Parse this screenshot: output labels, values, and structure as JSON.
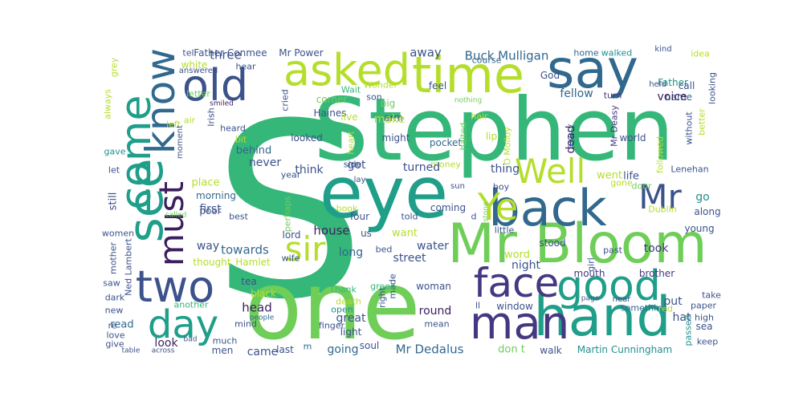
{
  "colors": {
    "dark_purple": "#3b1e5e",
    "purple": "#453781",
    "blue": "#3b528b",
    "steel": "#31688e",
    "teal": "#21908d",
    "sea": "#1f9e89",
    "green": "#35b779",
    "light_green": "#6ece58",
    "lime": "#b5de2b",
    "yellow": "#e3e418"
  },
  "words": [
    {
      "id": "S",
      "text": "S"
    },
    {
      "id": "Stephen",
      "text": "Stephen"
    },
    {
      "id": "one",
      "text": "one"
    },
    {
      "id": "eye",
      "text": "eye"
    },
    {
      "id": "MrBloom",
      "text": "Mr Bloom"
    },
    {
      "id": "hand",
      "text": "hand"
    },
    {
      "id": "time",
      "text": "time"
    },
    {
      "id": "say",
      "text": "say"
    },
    {
      "id": "back",
      "text": "back"
    },
    {
      "id": "man",
      "text": "man"
    },
    {
      "id": "face",
      "text": "face"
    },
    {
      "id": "good",
      "text": "good"
    },
    {
      "id": "two",
      "text": "two"
    },
    {
      "id": "see",
      "text": "see"
    },
    {
      "id": "know",
      "text": "know"
    },
    {
      "id": "come",
      "text": "come"
    },
    {
      "id": "old",
      "text": "old"
    },
    {
      "id": "asked",
      "text": "asked"
    },
    {
      "id": "day",
      "text": "day"
    },
    {
      "id": "must",
      "text": "must"
    },
    {
      "id": "Well",
      "text": "Well"
    },
    {
      "id": "Ye",
      "text": "Ye"
    },
    {
      "id": "Mr",
      "text": "Mr"
    },
    {
      "id": "sir",
      "text": "sir"
    },
    {
      "id": "BuckMulligan",
      "text": "Buck Mulligan"
    },
    {
      "id": "MrDedalus",
      "text": "Mr Dedalus"
    },
    {
      "id": "MartinCunningham",
      "text": "Martin Cunningham"
    },
    {
      "id": "FatherConmee",
      "text": "Father Conmee"
    },
    {
      "id": "MrPower",
      "text": "Mr Power"
    },
    {
      "id": "three",
      "text": "three"
    },
    {
      "id": "tell",
      "text": "tell"
    },
    {
      "id": "away",
      "text": "away"
    },
    {
      "id": "course",
      "text": "course"
    },
    {
      "id": "home",
      "text": "home"
    },
    {
      "id": "walked",
      "text": "walked"
    },
    {
      "id": "kind",
      "text": "kind"
    },
    {
      "id": "white",
      "text": "white"
    },
    {
      "id": "answered",
      "text": "answered"
    },
    {
      "id": "hear",
      "text": "hear"
    },
    {
      "id": "grey",
      "text": "grey"
    },
    {
      "id": "Father",
      "text": "Father"
    },
    {
      "id": "idea",
      "text": "idea"
    },
    {
      "id": "God",
      "text": "God"
    },
    {
      "id": "name",
      "text": "name"
    },
    {
      "id": "held",
      "text": "held"
    },
    {
      "id": "call",
      "text": "call"
    },
    {
      "id": "fellow",
      "text": "fellow"
    },
    {
      "id": "turn",
      "text": "turn"
    },
    {
      "id": "voice",
      "text": "voice"
    },
    {
      "id": "looking",
      "text": "looking"
    },
    {
      "id": "Wait",
      "text": "Wait"
    },
    {
      "id": "Wonder",
      "text": "Wonder"
    },
    {
      "id": "feel",
      "text": "feel"
    },
    {
      "id": "nothing",
      "text": "nothing"
    },
    {
      "id": "letter",
      "text": "letter"
    },
    {
      "id": "smiled",
      "text": "smiled"
    },
    {
      "id": "cried",
      "text": "cried"
    },
    {
      "id": "corner",
      "text": "corner"
    },
    {
      "id": "son",
      "text": "son"
    },
    {
      "id": "big",
      "text": "big"
    },
    {
      "id": "always",
      "text": "always"
    },
    {
      "id": "left",
      "text": "left"
    },
    {
      "id": "air",
      "text": "air"
    },
    {
      "id": "Haines",
      "text": "Haines"
    },
    {
      "id": "live",
      "text": "live"
    },
    {
      "id": "arm",
      "text": "arm"
    },
    {
      "id": "Irish",
      "text": "Irish"
    },
    {
      "id": "heard",
      "text": "heard"
    },
    {
      "id": "make",
      "text": "make"
    },
    {
      "id": "might",
      "text": "might"
    },
    {
      "id": "hair",
      "text": "hair"
    },
    {
      "id": "lip",
      "text": "lip"
    },
    {
      "id": "dead",
      "text": "dead"
    },
    {
      "id": "MrDeasy",
      "text": "Mr Deasy"
    },
    {
      "id": "every",
      "text": "every"
    },
    {
      "id": "world",
      "text": "world"
    },
    {
      "id": "without",
      "text": "without"
    },
    {
      "id": "better",
      "text": "better"
    },
    {
      "id": "followed",
      "text": "followed"
    },
    {
      "id": "bit",
      "text": "bit"
    },
    {
      "id": "looked",
      "text": "looked"
    },
    {
      "id": "pocket",
      "text": "pocket"
    },
    {
      "id": "halted",
      "text": "halted"
    },
    {
      "id": "OMolloy",
      "text": "O Molloy"
    },
    {
      "id": "behind",
      "text": "behind"
    },
    {
      "id": "gave",
      "text": "gave"
    },
    {
      "id": "moment",
      "text": "moment"
    },
    {
      "id": "side",
      "text": "side"
    },
    {
      "id": "money",
      "text": "money"
    },
    {
      "id": "went",
      "text": "went"
    },
    {
      "id": "life",
      "text": "life"
    },
    {
      "id": "Lenehan",
      "text": "Lenehan"
    },
    {
      "id": "never",
      "text": "never"
    },
    {
      "id": "got",
      "text": "got"
    },
    {
      "id": "think",
      "text": "think"
    },
    {
      "id": "turned",
      "text": "turned"
    },
    {
      "id": "thing",
      "text": "thing"
    },
    {
      "id": "let",
      "text": "let"
    },
    {
      "id": "year",
      "text": "year"
    },
    {
      "id": "lay",
      "text": "lay"
    },
    {
      "id": "sun",
      "text": "sun"
    },
    {
      "id": "boy",
      "text": "boy"
    },
    {
      "id": "gone",
      "text": "gone"
    },
    {
      "id": "door",
      "text": "door"
    },
    {
      "id": "go",
      "text": "go"
    },
    {
      "id": "place",
      "text": "place"
    },
    {
      "id": "morning",
      "text": "morning"
    },
    {
      "id": "still",
      "text": "still"
    },
    {
      "id": "first",
      "text": "first"
    },
    {
      "id": "perhaps",
      "text": "perhaps"
    },
    {
      "id": "book",
      "text": "book"
    },
    {
      "id": "coming",
      "text": "coming"
    },
    {
      "id": "Dublin",
      "text": "Dublin"
    },
    {
      "id": "along",
      "text": "along"
    },
    {
      "id": "poor",
      "text": "poor"
    },
    {
      "id": "called",
      "text": "called"
    },
    {
      "id": "best",
      "text": "best"
    },
    {
      "id": "four",
      "text": "four"
    },
    {
      "id": "told",
      "text": "told"
    },
    {
      "id": "d",
      "text": "d"
    },
    {
      "id": "little",
      "text": "little"
    },
    {
      "id": "young",
      "text": "young"
    },
    {
      "id": "women",
      "text": "women"
    },
    {
      "id": "lord",
      "text": "lord"
    },
    {
      "id": "house",
      "text": "house"
    },
    {
      "id": "us",
      "text": "us"
    },
    {
      "id": "want",
      "text": "want"
    },
    {
      "id": "stood",
      "text": "stood"
    },
    {
      "id": "girl",
      "text": "girl"
    },
    {
      "id": "past",
      "text": "past"
    },
    {
      "id": "took",
      "text": "took"
    },
    {
      "id": "way",
      "text": "way"
    },
    {
      "id": "towards",
      "text": "towards"
    },
    {
      "id": "long",
      "text": "long"
    },
    {
      "id": "bed",
      "text": "bed"
    },
    {
      "id": "water",
      "text": "water"
    },
    {
      "id": "mother",
      "text": "mother"
    },
    {
      "id": "NedLambert",
      "text": "Ned Lambert"
    },
    {
      "id": "wife",
      "text": "wife"
    },
    {
      "id": "street",
      "text": "street"
    },
    {
      "id": "word",
      "text": "word"
    },
    {
      "id": "thought",
      "text": "thought"
    },
    {
      "id": "Hamlet",
      "text": "Hamlet"
    },
    {
      "id": "night",
      "text": "night"
    },
    {
      "id": "mouth",
      "text": "mouth"
    },
    {
      "id": "brother",
      "text": "brother"
    },
    {
      "id": "saw",
      "text": "saw"
    },
    {
      "id": "dark",
      "text": "dark"
    },
    {
      "id": "tea",
      "text": "tea"
    },
    {
      "id": "black",
      "text": "black"
    },
    {
      "id": "made",
      "text": "made"
    },
    {
      "id": "right",
      "text": "right"
    },
    {
      "id": "green",
      "text": "green"
    },
    {
      "id": "Thank",
      "text": "Thank"
    },
    {
      "id": "woman",
      "text": "woman"
    },
    {
      "id": "put",
      "text": "put"
    },
    {
      "id": "hat",
      "text": "hat"
    },
    {
      "id": "new",
      "text": "new"
    },
    {
      "id": "re",
      "text": "re"
    },
    {
      "id": "head",
      "text": "head"
    },
    {
      "id": "death",
      "text": "death"
    },
    {
      "id": "round",
      "text": "round"
    },
    {
      "id": "open",
      "text": "open"
    },
    {
      "id": "ll",
      "text": "ll"
    },
    {
      "id": "window",
      "text": "window"
    },
    {
      "id": "something",
      "text": "something"
    },
    {
      "id": "take",
      "text": "take"
    },
    {
      "id": "page",
      "text": "page"
    },
    {
      "id": "near",
      "text": "near"
    },
    {
      "id": "red",
      "text": "red"
    },
    {
      "id": "paper",
      "text": "paper"
    },
    {
      "id": "another",
      "text": "another"
    },
    {
      "id": "people",
      "text": "people"
    },
    {
      "id": "high",
      "text": "high"
    },
    {
      "id": "read",
      "text": "read"
    },
    {
      "id": "mind",
      "text": "mind"
    },
    {
      "id": "finger",
      "text": "finger"
    },
    {
      "id": "great",
      "text": "great"
    },
    {
      "id": "mean",
      "text": "mean"
    },
    {
      "id": "sea",
      "text": "sea"
    },
    {
      "id": "love",
      "text": "love"
    },
    {
      "id": "look",
      "text": "look"
    },
    {
      "id": "light",
      "text": "light"
    },
    {
      "id": "passed",
      "text": "passed"
    },
    {
      "id": "give",
      "text": "give"
    },
    {
      "id": "bad",
      "text": "bad"
    },
    {
      "id": "much",
      "text": "much"
    },
    {
      "id": "m",
      "text": "m"
    },
    {
      "id": "soul",
      "text": "soul"
    },
    {
      "id": "dont",
      "text": "don t"
    },
    {
      "id": "walk",
      "text": "walk"
    },
    {
      "id": "keep",
      "text": "keep"
    },
    {
      "id": "table",
      "text": "table"
    },
    {
      "id": "across",
      "text": "across"
    },
    {
      "id": "men",
      "text": "men"
    },
    {
      "id": "came",
      "text": "came"
    },
    {
      "id": "last",
      "text": "last"
    },
    {
      "id": "going",
      "text": "going"
    },
    {
      "id": "heart",
      "text": "heart"
    },
    {
      "id": "stone",
      "text": "stone"
    }
  ]
}
